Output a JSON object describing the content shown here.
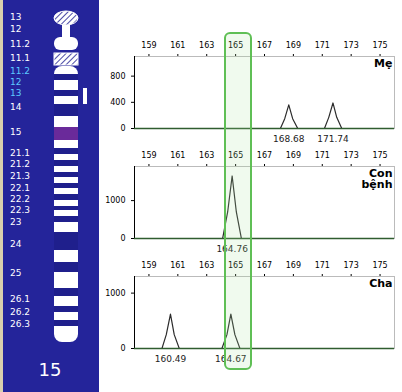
{
  "chart_data": [
    {
      "type": "line",
      "title": "Mẹ",
      "color": "#2b2b2b",
      "x": [
        158,
        168.1,
        168.4,
        168.68,
        168.95,
        169.3,
        171.15,
        171.45,
        171.74,
        172.0,
        172.35,
        176
      ],
      "values": [
        0,
        0,
        150,
        360,
        150,
        0,
        0,
        170,
        390,
        170,
        0,
        0
      ],
      "peaks": [
        168.68,
        171.74
      ],
      "xlim": [
        158,
        176
      ],
      "xticks": [
        159,
        161,
        163,
        165,
        167,
        169,
        171,
        173,
        175
      ],
      "ylim": [
        0,
        1100
      ],
      "yticks": [
        0,
        400,
        800
      ]
    },
    {
      "type": "line",
      "title": "Con bệnh",
      "color": "#2b2b2b",
      "x": [
        158,
        164.1,
        164.45,
        164.76,
        165.05,
        165.4,
        176
      ],
      "values": [
        0,
        0,
        700,
        1650,
        700,
        0,
        0
      ],
      "peaks": [
        164.76
      ],
      "xlim": [
        158,
        176
      ],
      "xticks": [
        159,
        161,
        163,
        165,
        167,
        169,
        171,
        173,
        175
      ],
      "ylim": [
        0,
        1900
      ],
      "yticks": [
        0,
        1000
      ]
    },
    {
      "type": "line",
      "title": "Cha",
      "color": "#2b2b2b",
      "x": [
        158,
        159.9,
        160.2,
        160.49,
        160.75,
        161.1,
        164.05,
        164.4,
        164.67,
        164.95,
        165.3,
        176
      ],
      "values": [
        0,
        0,
        250,
        620,
        250,
        0,
        0,
        250,
        620,
        250,
        0,
        0
      ],
      "peaks": [
        160.49,
        164.67
      ],
      "xlim": [
        158,
        176
      ],
      "xticks": [
        159,
        161,
        163,
        165,
        167,
        169,
        171,
        173,
        175
      ],
      "ylim": [
        0,
        1300
      ],
      "yticks": [
        0,
        1000
      ]
    }
  ],
  "highlight_range": [
    164.2,
    166.2
  ],
  "ideogram": {
    "number": "15",
    "labels": [
      "13",
      "12",
      "11.2",
      "11.1",
      "11.2",
      "12",
      "13",
      "14",
      "15",
      "21.1",
      "21.2",
      "21.3",
      "22.1",
      "22.2",
      "22.3",
      "23",
      "24",
      "25",
      "26.1",
      "26.2",
      "26.3"
    ]
  }
}
